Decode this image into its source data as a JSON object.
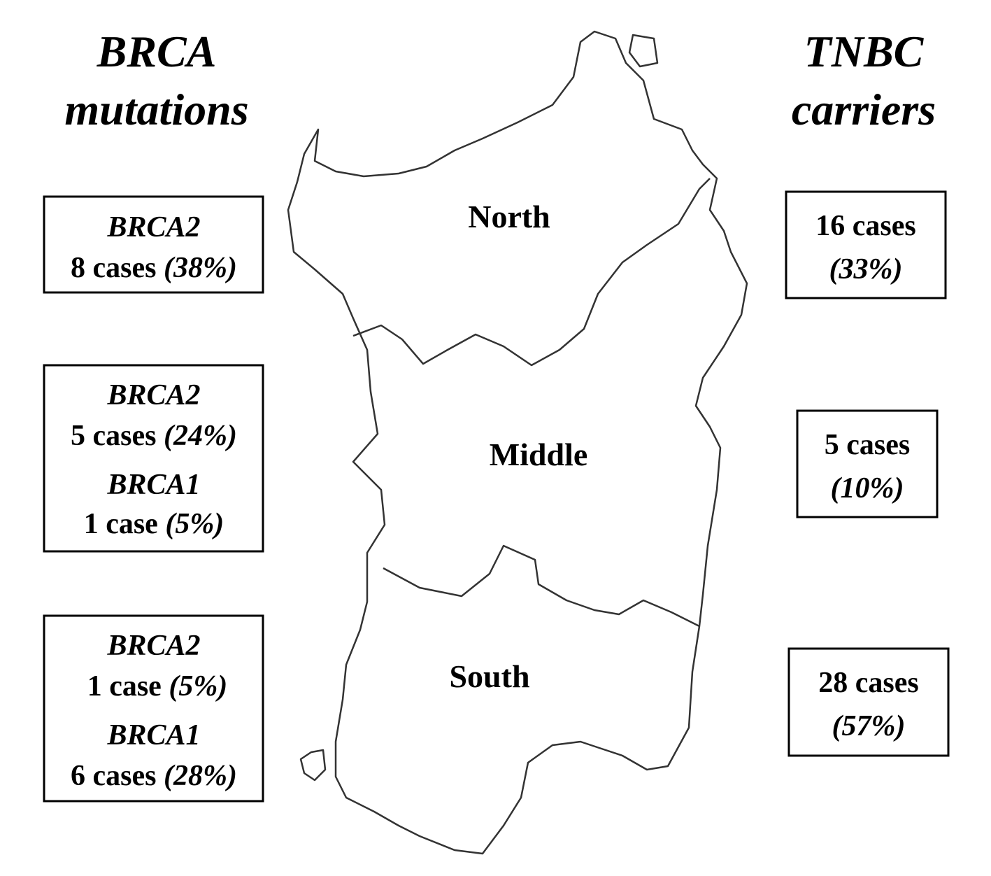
{
  "left_heading": {
    "line1": "BRCA",
    "line2": "mutations"
  },
  "right_heading": {
    "line1": "TNBC",
    "line2": "carriers"
  },
  "regions": [
    {
      "label": "North"
    },
    {
      "label": "Middle"
    },
    {
      "label": "South"
    }
  ],
  "brca_boxes": [
    {
      "entries": [
        {
          "gene": "BRCA2",
          "count": "8 cases",
          "percent": "(38%)"
        }
      ]
    },
    {
      "entries": [
        {
          "gene": "BRCA2",
          "count": "5 cases",
          "percent": "(24%)"
        },
        {
          "gene": "BRCA1",
          "count": "1 case",
          "percent": "(5%)"
        }
      ]
    },
    {
      "entries": [
        {
          "gene": "BRCA2",
          "count": "1 case",
          "percent": "(5%)"
        },
        {
          "gene": "BRCA1",
          "count": "6 cases",
          "percent": "(28%)"
        }
      ]
    }
  ],
  "tnbc_boxes": [
    {
      "count": "16 cases",
      "percent": "(33%)"
    },
    {
      "count": "5 cases",
      "percent": "(10%)"
    },
    {
      "count": "28 cases",
      "percent": "(57%)"
    }
  ]
}
